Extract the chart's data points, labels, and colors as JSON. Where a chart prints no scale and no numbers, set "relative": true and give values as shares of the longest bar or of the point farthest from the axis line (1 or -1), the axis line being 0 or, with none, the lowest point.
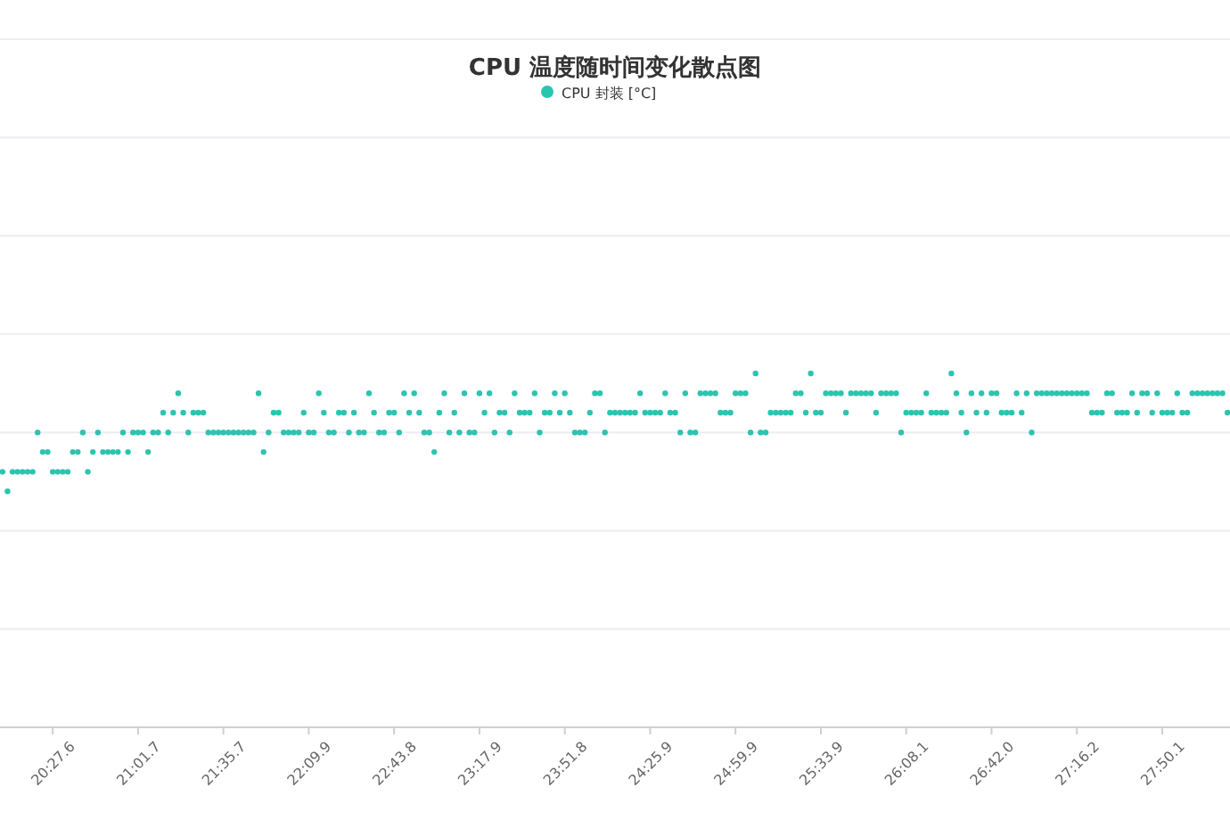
{
  "chart_data": {
    "type": "scatter",
    "title": "CPU 温度随时间变化散点图",
    "relative": true,
    "legend": "top",
    "grid": "y",
    "marker": "circle",
    "tick_labels": "x",
    "categories": [
      null,
      null,
      null,
      null,
      null,
      null,
      null,
      null,
      null,
      null,
      "20:27.6",
      null,
      null,
      null,
      null,
      null,
      null,
      null,
      null,
      null,
      null,
      null,
      null,
      null,
      null,
      null,
      null,
      "21:01.7",
      null,
      null,
      null,
      null,
      null,
      null,
      null,
      null,
      null,
      null,
      null,
      null,
      null,
      null,
      null,
      null,
      "21:35.7",
      null,
      null,
      null,
      null,
      null,
      null,
      null,
      null,
      null,
      null,
      null,
      null,
      null,
      null,
      null,
      null,
      "22:09.9",
      null,
      null,
      null,
      null,
      null,
      null,
      null,
      null,
      null,
      null,
      null,
      null,
      null,
      null,
      null,
      null,
      "22:43.8",
      null,
      null,
      null,
      null,
      null,
      null,
      null,
      null,
      null,
      null,
      null,
      null,
      null,
      null,
      null,
      null,
      "23:17.9",
      null,
      null,
      null,
      null,
      null,
      null,
      null,
      null,
      null,
      null,
      null,
      null,
      null,
      null,
      null,
      null,
      "23:51.8",
      null,
      null,
      null,
      null,
      null,
      null,
      null,
      null,
      null,
      null,
      null,
      null,
      null,
      null,
      null,
      null,
      "24:25.9",
      null,
      null,
      null,
      null,
      null,
      null,
      null,
      null,
      null,
      null,
      null,
      null,
      null,
      null,
      null,
      null,
      "24:59.9",
      null,
      null,
      null,
      null,
      null,
      null,
      null,
      null,
      null,
      null,
      null,
      null,
      null,
      null,
      null,
      null,
      "25:33.9",
      null,
      null,
      null,
      null,
      null,
      null,
      null,
      null,
      null,
      null,
      null,
      null,
      null,
      null,
      null,
      null,
      "26:08.1",
      null,
      null,
      null,
      null,
      null,
      null,
      null,
      null,
      null,
      null,
      null,
      null,
      null,
      null,
      null,
      null,
      "26:42.0",
      null,
      null,
      null,
      null,
      null,
      null,
      null,
      null,
      null,
      null,
      null,
      null,
      null,
      null,
      null,
      null,
      "27:16.2",
      null,
      null,
      null,
      null,
      null,
      null,
      null,
      null,
      null,
      null,
      null,
      null,
      null,
      null,
      null,
      null,
      "27:50.1",
      null,
      null,
      null,
      null,
      null,
      null,
      null,
      null,
      null,
      null,
      null,
      null,
      null
    ],
    "series": [
      {
        "name": "CPU 封装 [°C]",
        "color": "#2cc4b0",
        "values": [
          0.722,
          0.667,
          0.722,
          0.722,
          0.722,
          0.722,
          0.722,
          0.833,
          0.778,
          0.778,
          0.722,
          0.722,
          0.722,
          0.722,
          0.778,
          0.778,
          0.833,
          0.722,
          0.778,
          0.833,
          0.778,
          0.778,
          0.778,
          0.778,
          0.833,
          0.778,
          0.833,
          0.833,
          0.833,
          0.778,
          0.833,
          0.833,
          0.889,
          0.833,
          0.889,
          0.944,
          0.889,
          0.833,
          0.889,
          0.889,
          0.889,
          0.833,
          0.833,
          0.833,
          0.833,
          0.833,
          0.833,
          0.833,
          0.833,
          0.833,
          0.833,
          0.944,
          0.778,
          0.833,
          0.889,
          0.889,
          0.833,
          0.833,
          0.833,
          0.833,
          0.889,
          0.833,
          0.833,
          0.944,
          0.889,
          0.833,
          0.833,
          0.889,
          0.889,
          0.833,
          0.889,
          0.833,
          0.833,
          0.944,
          0.889,
          0.833,
          0.833,
          0.889,
          0.889,
          0.833,
          0.944,
          0.889,
          0.944,
          0.889,
          0.833,
          0.833,
          0.778,
          0.889,
          0.944,
          0.833,
          0.889,
          0.833,
          0.944,
          0.833,
          0.833,
          0.944,
          0.889,
          0.944,
          0.833,
          0.889,
          0.889,
          0.833,
          0.944,
          0.889,
          0.889,
          0.889,
          0.944,
          0.833,
          0.889,
          0.889,
          0.944,
          0.889,
          0.944,
          0.889,
          0.833,
          0.833,
          0.833,
          0.889,
          0.944,
          0.944,
          0.833,
          0.889,
          0.889,
          0.889,
          0.889,
          0.889,
          0.889,
          0.944,
          0.889,
          0.889,
          0.889,
          0.889,
          0.944,
          0.889,
          0.889,
          0.833,
          0.944,
          0.833,
          0.833,
          0.944,
          0.944,
          0.944,
          0.944,
          0.889,
          0.889,
          0.889,
          0.944,
          0.944,
          0.944,
          0.833,
          1,
          0.833,
          0.833,
          0.889,
          0.889,
          0.889,
          0.889,
          0.889,
          0.944,
          0.944,
          0.889,
          1,
          0.889,
          0.889,
          0.944,
          0.944,
          0.944,
          0.944,
          0.889,
          0.944,
          0.944,
          0.944,
          0.944,
          0.944,
          0.889,
          0.944,
          0.944,
          0.944,
          0.944,
          0.833,
          0.889,
          0.889,
          0.889,
          0.889,
          0.944,
          0.889,
          0.889,
          0.889,
          0.889,
          1,
          0.944,
          0.889,
          0.833,
          0.944,
          0.889,
          0.944,
          0.889,
          0.944,
          0.944,
          0.889,
          0.889,
          0.889,
          0.944,
          0.889,
          0.944,
          0.833,
          0.944,
          0.944,
          0.944,
          0.944,
          0.944,
          0.944,
          0.944,
          0.944,
          0.944,
          0.944,
          0.944,
          0.889,
          0.889,
          0.889,
          0.944,
          0.944,
          0.889,
          0.889,
          0.889,
          0.944,
          0.889,
          0.944,
          0.944,
          0.889,
          0.944,
          0.889,
          0.889,
          0.889,
          0.944,
          0.889,
          0.889,
          0.944,
          0.944,
          0.944,
          0.944,
          0.944,
          0.944,
          0.944,
          0.889
        ]
      }
    ]
  }
}
